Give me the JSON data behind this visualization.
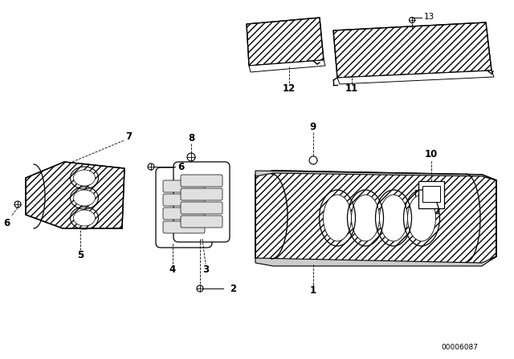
{
  "background_color": "#ffffff",
  "line_color": "#000000",
  "diagram_code": "00006087",
  "fig_width": 6.4,
  "fig_height": 4.48,
  "dpi": 100,
  "label_fontsize": 8.5,
  "small_fontsize": 6.5
}
